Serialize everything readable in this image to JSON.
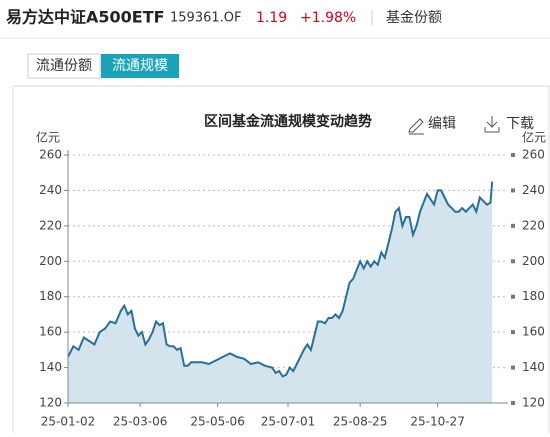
{
  "header": {
    "name": "易方达中证A500ETF",
    "code": "159361.OF",
    "price": "1.19",
    "change": "+1.98%",
    "section": "基金份额"
  },
  "tabs": [
    "流通份额",
    "流通规模"
  ],
  "toolbar": {
    "edit": "编辑",
    "download": "下载"
  },
  "chart_data": {
    "type": "area",
    "title": "区间基金流通规模变动趋势",
    "y_unit": "亿元",
    "color": "#2a6f97",
    "fill": "#d3e4ec",
    "grid": true,
    "xlim": [
      0,
      250
    ],
    "xticks": [
      {
        "value": 0,
        "label": "25-01-02"
      },
      {
        "value": 41,
        "label": "25-03-06"
      },
      {
        "value": 85,
        "label": "25-05-06"
      },
      {
        "value": 125,
        "label": "25-07-01"
      },
      {
        "value": 166,
        "label": "25-08-25"
      },
      {
        "value": 210,
        "label": "25-10-27"
      }
    ],
    "ylim": [
      120,
      260
    ],
    "yticks": [
      120,
      140,
      160,
      180,
      200,
      220,
      240,
      260
    ],
    "x": [
      0,
      3,
      6,
      9,
      12,
      15,
      18,
      21,
      24,
      27,
      30,
      32,
      34,
      36,
      38,
      40,
      42,
      44,
      46,
      48,
      50,
      52,
      54,
      56,
      58,
      60,
      62,
      64,
      66,
      68,
      70,
      72,
      76,
      80,
      84,
      88,
      92,
      96,
      100,
      104,
      108,
      112,
      116,
      118,
      120,
      122,
      124,
      126,
      128,
      130,
      132,
      134,
      136,
      138,
      140,
      142,
      144,
      146,
      148,
      150,
      152,
      154,
      156,
      158,
      160,
      162,
      164,
      166,
      168,
      170,
      172,
      174,
      176,
      178,
      180,
      182,
      184,
      186,
      188,
      190,
      192,
      194,
      196,
      198,
      200,
      202,
      204,
      206,
      208,
      210,
      212,
      214,
      216,
      218,
      220,
      222,
      224,
      226,
      228,
      230,
      232,
      234,
      236,
      238,
      240,
      241
    ],
    "values": [
      146,
      152,
      150,
      157,
      155,
      153,
      160,
      162,
      166,
      165,
      172,
      175,
      170,
      172,
      162,
      158,
      160,
      153,
      156,
      160,
      166,
      164,
      165,
      153,
      152,
      152,
      150,
      151,
      141,
      141,
      143,
      143,
      143,
      142,
      144,
      146,
      148,
      146,
      145,
      142,
      143,
      141,
      140,
      137,
      138,
      135,
      136,
      140,
      138,
      142,
      146,
      150,
      153,
      150,
      158,
      166,
      166,
      165,
      168,
      168,
      170,
      168,
      172,
      180,
      188,
      190,
      195,
      200,
      196,
      200,
      197,
      200,
      198,
      205,
      202,
      210,
      218,
      228,
      230,
      220,
      225,
      225,
      215,
      220,
      228,
      233,
      238,
      235,
      232,
      240,
      240,
      236,
      232,
      230,
      228,
      228,
      230,
      228,
      230,
      232,
      228,
      236,
      234,
      232,
      233,
      245
    ]
  }
}
